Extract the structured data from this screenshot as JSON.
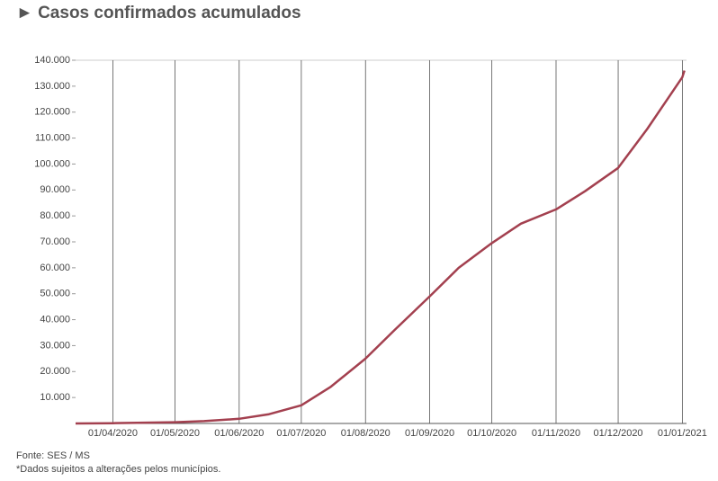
{
  "chart_data": {
    "type": "line",
    "title": "► Casos confirmados acumulados",
    "source": "Fonte: SES / MS",
    "note": "*Dados sujeitos a alterações pelos municípios.",
    "x": [
      "14/03/2020",
      "01/04/2020",
      "01/05/2020",
      "15/05/2020",
      "01/06/2020",
      "15/06/2020",
      "01/07/2020",
      "15/07/2020",
      "01/08/2020",
      "15/08/2020",
      "01/09/2020",
      "15/09/2020",
      "01/10/2020",
      "15/10/2020",
      "01/11/2020",
      "15/11/2020",
      "01/12/2020",
      "15/12/2020",
      "01/01/2021",
      "02/01/2021"
    ],
    "series": [
      {
        "name": "Casos confirmados",
        "color": "#a3404f",
        "values": [
          0,
          100,
          500,
          900,
          1800,
          3500,
          7000,
          14000,
          25000,
          36000,
          49000,
          60000,
          69500,
          77000,
          82500,
          89500,
          98500,
          113500,
          133500,
          136000
        ]
      }
    ],
    "xlim": [
      "14/03/2020",
      "03/01/2021"
    ],
    "xticks": [
      "01/04/2020",
      "01/05/2020",
      "01/06/2020",
      "01/07/2020",
      "01/08/2020",
      "01/09/2020",
      "01/10/2020",
      "01/11/2020",
      "01/12/2020",
      "01/01/2021"
    ],
    "ylim": [
      0,
      140000
    ],
    "yticks": [
      {
        "value": 10000,
        "label": "10.000"
      },
      {
        "value": 20000,
        "label": "20.000"
      },
      {
        "value": 30000,
        "label": "30.000"
      },
      {
        "value": 40000,
        "label": "40.000"
      },
      {
        "value": 50000,
        "label": "50.000"
      },
      {
        "value": 60000,
        "label": "60.000"
      },
      {
        "value": 70000,
        "label": "70.000"
      },
      {
        "value": 80000,
        "label": "80.000"
      },
      {
        "value": 90000,
        "label": "90.000"
      },
      {
        "value": 100000,
        "label": "100.000"
      },
      {
        "value": 110000,
        "label": "110.000"
      },
      {
        "value": 120000,
        "label": "120.000"
      },
      {
        "value": 130000,
        "label": "130.000"
      },
      {
        "value": 140000,
        "label": "140.000"
      }
    ],
    "grid": true
  }
}
